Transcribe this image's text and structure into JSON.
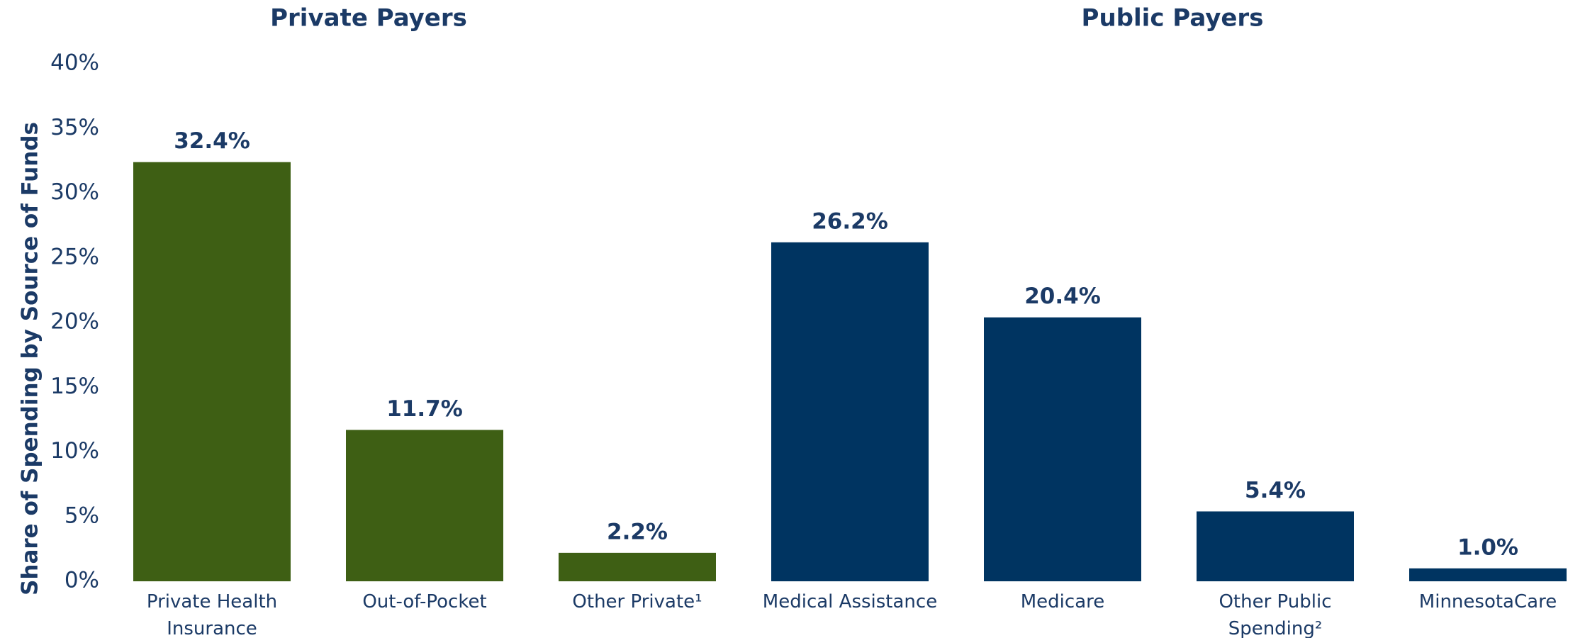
{
  "chart_data": {
    "type": "bar",
    "y_label": "Share of Spending by Source of Funds",
    "ylim": [
      0,
      40
    ],
    "yticks": [
      {
        "value": 0,
        "label": "0%"
      },
      {
        "value": 5,
        "label": "5%"
      },
      {
        "value": 10,
        "label": "10%"
      },
      {
        "value": 15,
        "label": "15%"
      },
      {
        "value": 20,
        "label": "20%"
      },
      {
        "value": 25,
        "label": "25%"
      },
      {
        "value": 30,
        "label": "30%"
      },
      {
        "value": 35,
        "label": "35%"
      },
      {
        "value": 40,
        "label": "40%"
      }
    ],
    "grid": false,
    "groups": [
      {
        "title": "Private Payers",
        "color": "#3e5f14",
        "categories": [
          "Private Health Insurance",
          "Out-of-Pocket",
          "Other Private¹"
        ],
        "values": [
          32.4,
          11.7,
          2.2
        ],
        "value_labels": [
          "32.4%",
          "11.7%",
          "2.2%"
        ]
      },
      {
        "title": "Public Payers",
        "color": "#003461",
        "categories": [
          "Medical Assistance",
          "Medicare",
          "Other Public Spending²",
          "MinnesotaCare"
        ],
        "values": [
          26.2,
          20.4,
          5.4,
          1.0
        ],
        "value_labels": [
          "26.2%",
          "20.4%",
          "5.4%",
          "1.0%"
        ]
      }
    ]
  }
}
